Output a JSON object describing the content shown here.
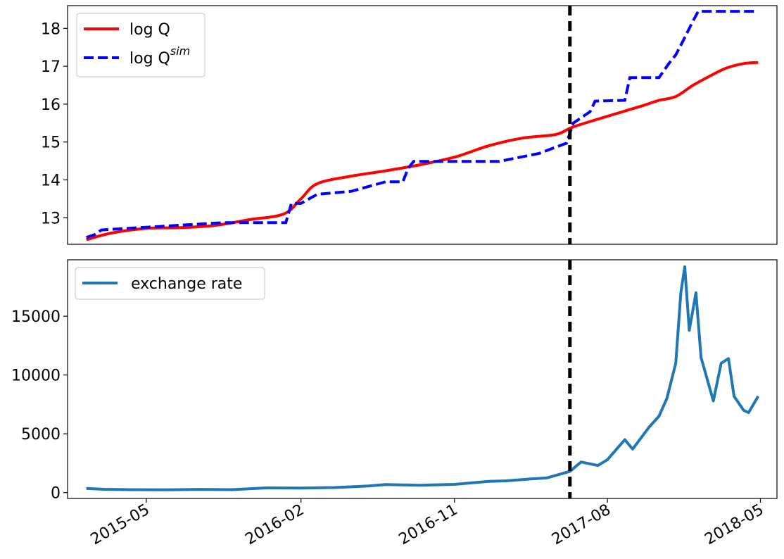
{
  "chart_data": [
    {
      "type": "line",
      "panel": "top",
      "title": "",
      "xlabel": "",
      "ylabel": "",
      "x_range": [
        "2015-01-14",
        "2018-04-27"
      ],
      "ylim": [
        12.3,
        18.6
      ],
      "yticks": [
        13,
        14,
        15,
        16,
        17,
        18
      ],
      "legend_position": "top-left",
      "vline_date": "2017-05-26",
      "series": [
        {
          "name": "log Q",
          "color": "#ff0000",
          "style": "solid",
          "x": [
            "2015-01-14",
            "2015-03-01",
            "2015-05-01",
            "2015-07-01",
            "2015-09-01",
            "2015-11-01",
            "2016-01-01",
            "2016-02-01",
            "2016-03-01",
            "2016-05-01",
            "2016-07-01",
            "2016-09-01",
            "2016-11-01",
            "2017-01-01",
            "2017-03-01",
            "2017-05-01",
            "2017-06-01",
            "2017-08-01",
            "2017-10-01",
            "2017-11-01",
            "2017-12-01",
            "2018-01-01",
            "2018-02-01",
            "2018-03-01",
            "2018-04-01",
            "2018-04-27"
          ],
          "values": [
            12.42,
            12.6,
            12.72,
            12.74,
            12.8,
            12.95,
            13.1,
            13.5,
            13.9,
            14.1,
            14.24,
            14.4,
            14.6,
            14.9,
            15.1,
            15.2,
            15.4,
            15.68,
            15.95,
            16.1,
            16.2,
            16.5,
            16.75,
            16.95,
            17.07,
            17.1
          ]
        },
        {
          "name": "log Q",
          "name_superscript": "sim",
          "color": "#0000ff",
          "style": "dashed",
          "x": [
            "2015-01-14",
            "2015-01-28",
            "2015-02-10",
            "2015-09-14",
            "2016-01-05",
            "2016-01-15",
            "2016-02-01",
            "2016-03-01",
            "2016-05-01",
            "2016-07-01",
            "2016-08-01",
            "2016-08-10",
            "2016-08-20",
            "2017-01-20",
            "2017-04-01",
            "2017-05-20",
            "2017-06-01",
            "2017-07-01",
            "2017-07-10",
            "2017-09-01",
            "2017-09-10",
            "2017-11-01",
            "2017-11-20",
            "2017-12-01",
            "2017-12-15",
            "2018-01-01",
            "2018-01-10",
            "2018-04-27"
          ],
          "values": [
            12.48,
            12.55,
            12.68,
            12.87,
            12.87,
            13.38,
            13.38,
            13.62,
            13.7,
            13.95,
            13.95,
            14.3,
            14.49,
            14.49,
            14.7,
            14.97,
            15.5,
            15.8,
            16.08,
            16.1,
            16.7,
            16.7,
            17.1,
            17.3,
            17.7,
            18.2,
            18.45,
            18.45
          ]
        }
      ]
    },
    {
      "type": "line",
      "panel": "bottom",
      "title": "",
      "xlabel": "",
      "ylabel": "",
      "x_range": [
        "2015-01-14",
        "2018-04-27"
      ],
      "ylim": [
        -500,
        19800
      ],
      "yticks": [
        0,
        5000,
        10000,
        15000
      ],
      "xticks": [
        "2015-05",
        "2016-02",
        "2016-11",
        "2017-08",
        "2018-05"
      ],
      "legend_position": "top-left",
      "vline_date": "2017-05-26",
      "series": [
        {
          "name": "exchange rate",
          "color": "#1f77b4",
          "style": "solid",
          "x": [
            "2015-01-14",
            "2015-02-15",
            "2015-04-01",
            "2015-06-01",
            "2015-08-01",
            "2015-10-01",
            "2015-12-01",
            "2016-02-01",
            "2016-04-01",
            "2016-06-01",
            "2016-07-01",
            "2016-09-01",
            "2016-11-01",
            "2017-01-01",
            "2017-02-01",
            "2017-03-15",
            "2017-04-15",
            "2017-05-26",
            "2017-06-15",
            "2017-07-15",
            "2017-08-01",
            "2017-09-01",
            "2017-09-15",
            "2017-10-15",
            "2017-11-01",
            "2017-11-15",
            "2017-12-01",
            "2017-12-10",
            "2017-12-17",
            "2017-12-25",
            "2018-01-06",
            "2018-01-15",
            "2018-02-06",
            "2018-02-20",
            "2018-03-05",
            "2018-03-15",
            "2018-04-01",
            "2018-04-10",
            "2018-04-27"
          ],
          "values": [
            350,
            280,
            250,
            230,
            270,
            250,
            400,
            380,
            430,
            560,
            680,
            620,
            700,
            950,
            1000,
            1150,
            1250,
            1800,
            2600,
            2300,
            2800,
            4500,
            3700,
            5600,
            6500,
            8000,
            11000,
            17000,
            19200,
            13800,
            17000,
            11500,
            7800,
            11000,
            11400,
            8200,
            7000,
            6800,
            8200
          ]
        }
      ]
    }
  ]
}
